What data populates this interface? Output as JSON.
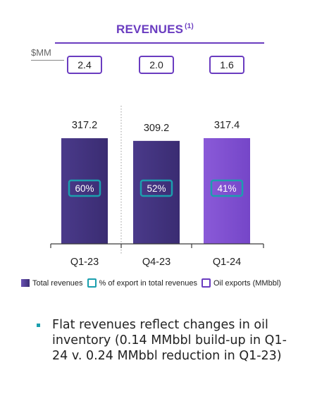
{
  "header": {
    "title": "REVENUES",
    "footnote": "(1)",
    "unit": "$MM"
  },
  "chart_data": {
    "type": "bar",
    "categories": [
      "Q1-23",
      "Q4-23",
      "Q1-24"
    ],
    "series": [
      {
        "name": "Total revenues",
        "values": [
          317.2,
          309.2,
          317.4
        ]
      },
      {
        "name": "% of export in total revenues",
        "values": [
          "60%",
          "52%",
          "41%"
        ]
      },
      {
        "name": "Oil exports (MMbbl)",
        "values": [
          "2.4",
          "2.0",
          "1.6"
        ]
      }
    ],
    "value_labels": [
      "317.2",
      "309.2",
      "317.4"
    ],
    "bar_colors": [
      "#3f3178",
      "#3f3178",
      "#7a4fd0"
    ],
    "accent_teal": "#1b9fae",
    "accent_purple": "#6a3cc0",
    "ylim": [
      0,
      400
    ]
  },
  "legend": {
    "total": "Total revenues",
    "pct": "% of export in total revenues",
    "oil": "Oil exports (MMbbl)"
  },
  "note": {
    "text": "Flat revenues reflect changes in oil inventory (0.14 MMbbl build-up in Q1-24 v. 0.24 MMbbl reduction in Q1-23)"
  }
}
